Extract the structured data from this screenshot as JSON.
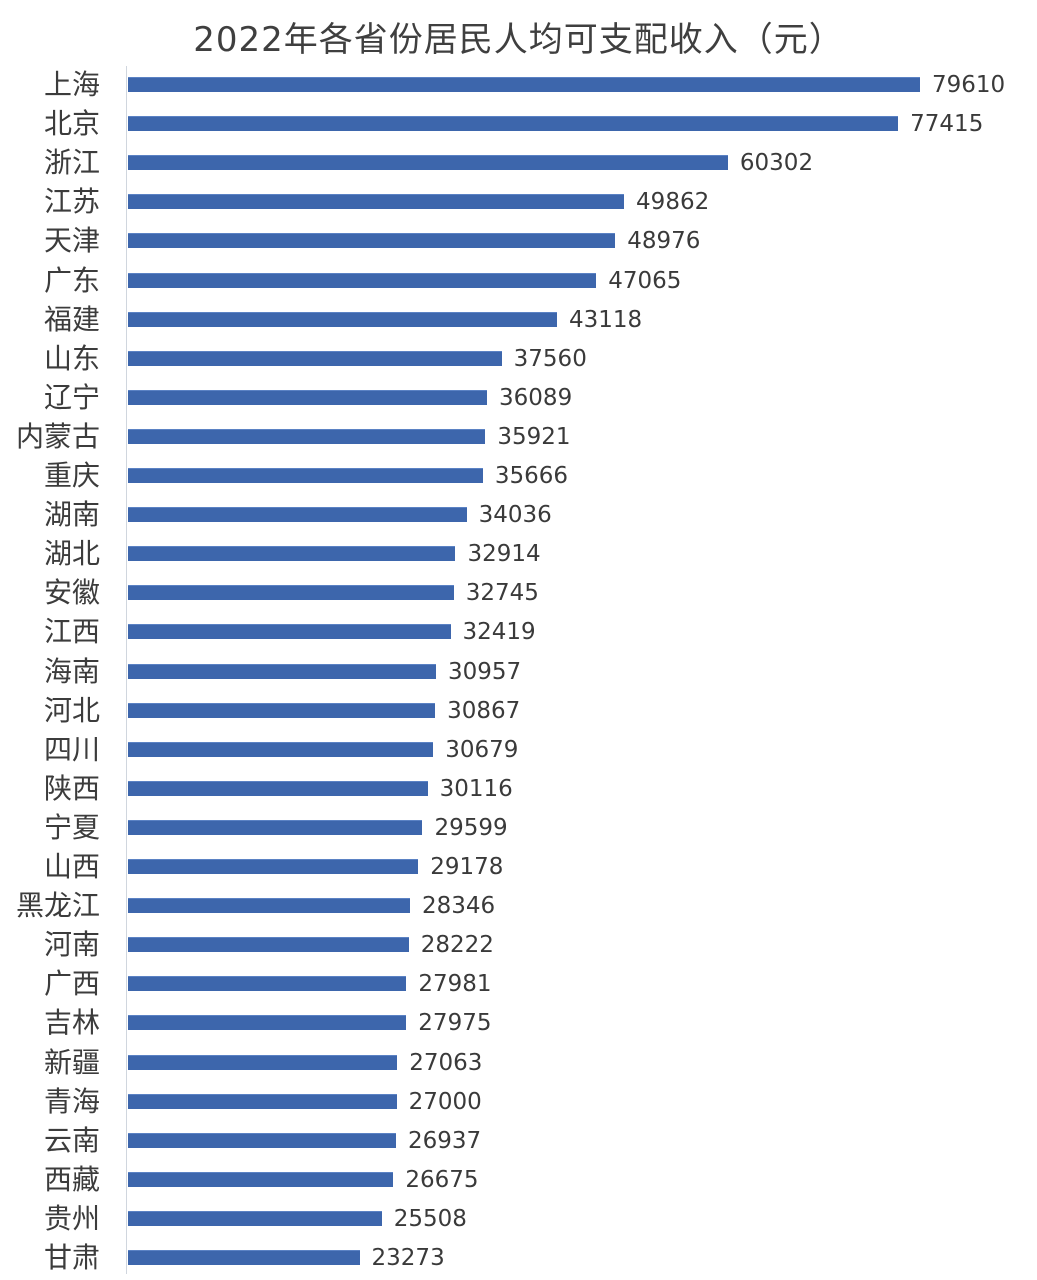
{
  "chart_data": {
    "type": "bar",
    "orientation": "horizontal",
    "title": "2022年各省份居民人均可支配收入（元）",
    "xlabel": "",
    "ylabel": "",
    "grid": false,
    "legend": null,
    "data_labels": true,
    "bar_color": "#3d66ac",
    "categories": [
      "上海",
      "北京",
      "浙江",
      "江苏",
      "天津",
      "广东",
      "福建",
      "山东",
      "辽宁",
      "内蒙古",
      "重庆",
      "湖南",
      "湖北",
      "安徽",
      "江西",
      "海南",
      "河北",
      "四川",
      "陕西",
      "宁夏",
      "山西",
      "黑龙江",
      "河南",
      "广西",
      "吉林",
      "新疆",
      "青海",
      "云南",
      "西藏",
      "贵州",
      "甘肃"
    ],
    "values": [
      79610,
      77415,
      60302,
      49862,
      48976,
      47065,
      43118,
      37560,
      36089,
      35921,
      35666,
      34036,
      32914,
      32745,
      32419,
      30957,
      30867,
      30679,
      30116,
      29599,
      29178,
      28346,
      28222,
      27981,
      27975,
      27063,
      27000,
      26937,
      26675,
      25508,
      23273
    ],
    "xlim": [
      0,
      80000
    ]
  },
  "rows": [
    {
      "label": "上海",
      "value": "79610"
    },
    {
      "label": "北京",
      "value": "77415"
    },
    {
      "label": "浙江",
      "value": "60302"
    },
    {
      "label": "江苏",
      "value": "49862"
    },
    {
      "label": "天津",
      "value": "48976"
    },
    {
      "label": "广东",
      "value": "47065"
    },
    {
      "label": "福建",
      "value": "43118"
    },
    {
      "label": "山东",
      "value": "37560"
    },
    {
      "label": "辽宁",
      "value": "36089"
    },
    {
      "label": "内蒙古",
      "value": "35921"
    },
    {
      "label": "重庆",
      "value": "35666"
    },
    {
      "label": "湖南",
      "value": "34036"
    },
    {
      "label": "湖北",
      "value": "32914"
    },
    {
      "label": "安徽",
      "value": "32745"
    },
    {
      "label": "江西",
      "value": "32419"
    },
    {
      "label": "海南",
      "value": "30957"
    },
    {
      "label": "河北",
      "value": "30867"
    },
    {
      "label": "四川",
      "value": "30679"
    },
    {
      "label": "陕西",
      "value": "30116"
    },
    {
      "label": "宁夏",
      "value": "29599"
    },
    {
      "label": "山西",
      "value": "29178"
    },
    {
      "label": "黑龙江",
      "value": "28346"
    },
    {
      "label": "河南",
      "value": "28222"
    },
    {
      "label": "广西",
      "value": "27981"
    },
    {
      "label": "吉林",
      "value": "27975"
    },
    {
      "label": "新疆",
      "value": "27063"
    },
    {
      "label": "青海",
      "value": "27000"
    },
    {
      "label": "云南",
      "value": "26937"
    },
    {
      "label": "西藏",
      "value": "26675"
    },
    {
      "label": "贵州",
      "value": "25508"
    },
    {
      "label": "甘肃",
      "value": "23273"
    }
  ]
}
